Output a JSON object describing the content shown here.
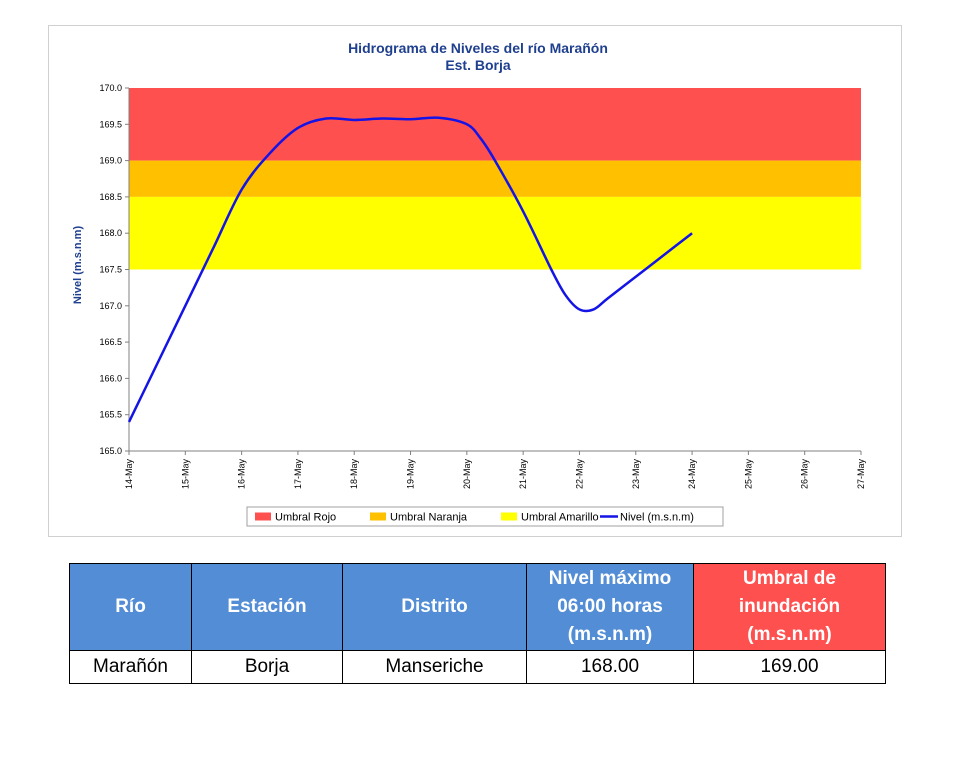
{
  "chart_data": {
    "type": "line",
    "title": "Hidrograma de Niveles del río Marañón",
    "subtitle": "Est. Borja",
    "ylabel": "Nivel (m.s.n.m)",
    "ylim": [
      165.0,
      170.0
    ],
    "yticks": [
      "165.0",
      "165.5",
      "166.0",
      "166.5",
      "167.0",
      "167.5",
      "168.0",
      "168.5",
      "169.0",
      "169.5",
      "170.0"
    ],
    "xticks": [
      "14-May",
      "15-May",
      "16-May",
      "17-May",
      "18-May",
      "19-May",
      "20-May",
      "21-May",
      "22-May",
      "23-May",
      "24-May",
      "25-May",
      "26-May",
      "27-May"
    ],
    "xlim": [
      0,
      13
    ],
    "bands": [
      {
        "name": "Umbral Rojo",
        "from": 169.0,
        "to": 170.0,
        "color": "#ff5050"
      },
      {
        "name": "Umbral Naranja",
        "from": 168.5,
        "to": 169.0,
        "color": "#ffc000"
      },
      {
        "name": "Umbral Amarillo",
        "from": 167.5,
        "to": 168.5,
        "color": "#ffff00"
      }
    ],
    "series": [
      {
        "name": "Nivel (m.s.n.m)",
        "color": "#1414e6",
        "x": [
          0,
          0.5,
          1,
          1.5,
          2,
          2.5,
          3,
          3.5,
          4,
          4.5,
          5,
          5.5,
          6,
          6.25,
          6.5,
          7,
          7.5,
          7.75,
          8,
          8.25,
          8.5,
          9,
          9.5,
          10
        ],
        "y": [
          165.4,
          166.2,
          167.0,
          167.8,
          168.6,
          169.1,
          169.45,
          169.58,
          169.56,
          169.58,
          169.57,
          169.59,
          169.5,
          169.3,
          169.0,
          168.3,
          167.5,
          167.15,
          166.95,
          166.95,
          167.1,
          167.4,
          167.7,
          168.0
        ]
      }
    ],
    "legend": [
      "Umbral Rojo",
      "Umbral Naranja",
      "Umbral Amarillo",
      "Nivel (m.s.n.m)"
    ],
    "legend_position": "bottom"
  },
  "table": {
    "headers": [
      "Río",
      "Estación",
      "Distrito",
      "Nivel máximo 06:00 horas (m.s.n.m)",
      "Umbral de inundación (m.s.n.m)"
    ],
    "row": [
      "Marañón",
      "Borja",
      "Manseriche",
      "168.00",
      "169.00"
    ]
  }
}
